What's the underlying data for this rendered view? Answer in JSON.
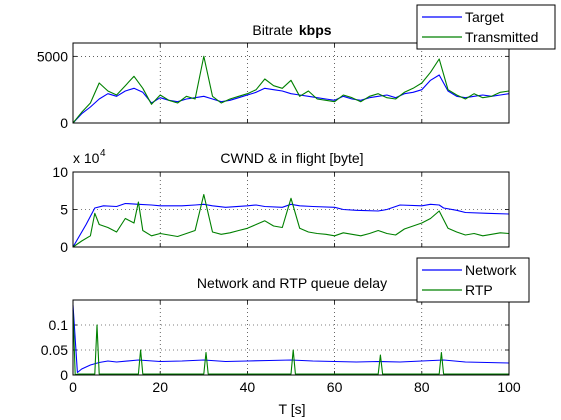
{
  "chart_data": [
    {
      "type": "line",
      "title": "Bitrate",
      "title_unit": "kbps",
      "xlim": [
        0,
        100
      ],
      "ylim": [
        0,
        6000
      ],
      "yticks": [
        "0",
        "5000"
      ],
      "xticks": [
        0,
        20,
        40,
        60,
        80,
        100
      ],
      "grid": true,
      "legend_placement": "top-right",
      "series": [
        {
          "name": "Target",
          "color": "#0000ff",
          "x": [
            0,
            2,
            4,
            6,
            8,
            10,
            12,
            14,
            16,
            18,
            20,
            22,
            24,
            26,
            28,
            30,
            32,
            34,
            36,
            38,
            40,
            42,
            44,
            46,
            48,
            50,
            52,
            54,
            56,
            58,
            60,
            62,
            64,
            66,
            68,
            70,
            72,
            74,
            76,
            78,
            80,
            82,
            84,
            86,
            88,
            90,
            92,
            94,
            96,
            98,
            100
          ],
          "values": [
            0,
            700,
            1200,
            1800,
            2200,
            2000,
            2400,
            2600,
            2300,
            1500,
            1900,
            1700,
            1600,
            1800,
            1900,
            2000,
            1800,
            1600,
            1700,
            1900,
            2100,
            2300,
            2600,
            2500,
            2400,
            2200,
            2100,
            2000,
            1900,
            1800,
            1700,
            2000,
            1800,
            1700,
            1900,
            2000,
            2100,
            1900,
            2200,
            2300,
            2500,
            3200,
            3600,
            2400,
            2000,
            1900,
            2000,
            2100,
            2000,
            2100,
            2200
          ]
        },
        {
          "name": "Transmitted",
          "color": "#008000",
          "x": [
            0,
            2,
            4,
            6,
            8,
            10,
            12,
            14,
            16,
            18,
            20,
            22,
            24,
            26,
            28,
            30,
            32,
            34,
            36,
            38,
            40,
            42,
            44,
            46,
            48,
            50,
            52,
            54,
            56,
            58,
            60,
            62,
            64,
            66,
            68,
            70,
            72,
            74,
            76,
            78,
            80,
            82,
            84,
            86,
            88,
            90,
            92,
            94,
            96,
            98,
            100
          ],
          "values": [
            0,
            800,
            1500,
            3000,
            2400,
            2100,
            2800,
            3500,
            2600,
            1400,
            2100,
            1700,
            1500,
            2000,
            1800,
            5000,
            2000,
            1500,
            1800,
            2000,
            2200,
            2500,
            3300,
            2800,
            2600,
            3200,
            2000,
            2400,
            1800,
            1700,
            1600,
            2100,
            1900,
            1600,
            2000,
            2200,
            1900,
            1800,
            2300,
            2600,
            3000,
            3800,
            4800,
            2500,
            2100,
            1800,
            2200,
            1900,
            2000,
            2300,
            2400
          ]
        }
      ]
    },
    {
      "type": "line",
      "title": "CWND & in flight [byte]",
      "xlim": [
        0,
        100
      ],
      "ylim": [
        0,
        100000
      ],
      "y_exponent_label": "x 10",
      "y_exponent": "4",
      "yticks": [
        "0",
        "5",
        "10"
      ],
      "xticks": [
        0,
        20,
        40,
        60,
        80,
        100
      ],
      "grid": true,
      "series": [
        {
          "color": "#0000ff",
          "x": [
            0,
            3,
            5,
            7,
            10,
            12,
            15,
            18,
            20,
            25,
            28,
            30,
            32,
            35,
            40,
            42,
            44,
            48,
            50,
            52,
            55,
            60,
            62,
            65,
            70,
            72,
            75,
            80,
            82,
            84,
            85,
            88,
            90,
            95,
            100
          ],
          "values": [
            0,
            30000,
            52000,
            55000,
            54000,
            58000,
            57000,
            56000,
            55000,
            55000,
            56000,
            57000,
            55000,
            53000,
            55000,
            56000,
            54000,
            53000,
            57000,
            55000,
            54000,
            53000,
            50000,
            49000,
            48000,
            50000,
            56000,
            55000,
            57000,
            56000,
            52000,
            49000,
            46000,
            45000,
            44000
          ]
        },
        {
          "color": "#008000",
          "x": [
            0,
            2,
            4,
            5,
            6,
            8,
            10,
            12,
            14,
            15,
            16,
            18,
            20,
            22,
            24,
            26,
            28,
            30,
            32,
            34,
            36,
            38,
            40,
            42,
            44,
            46,
            48,
            50,
            52,
            54,
            56,
            58,
            60,
            62,
            64,
            66,
            68,
            70,
            72,
            74,
            76,
            78,
            80,
            82,
            84,
            86,
            88,
            90,
            92,
            94,
            96,
            98,
            100
          ],
          "values": [
            0,
            8000,
            15000,
            45000,
            30000,
            26000,
            20000,
            38000,
            32000,
            60000,
            22000,
            15000,
            18000,
            16000,
            14000,
            18000,
            22000,
            70000,
            20000,
            17000,
            19000,
            22000,
            25000,
            30000,
            35000,
            28000,
            26000,
            65000,
            25000,
            20000,
            18000,
            17000,
            15000,
            19000,
            17000,
            15000,
            18000,
            22000,
            18000,
            16000,
            24000,
            28000,
            32000,
            38000,
            48000,
            25000,
            20000,
            16000,
            18000,
            15000,
            17000,
            19000,
            18000
          ]
        }
      ]
    },
    {
      "type": "line",
      "title": "Network and RTP queue delay",
      "xlabel": "T [s]",
      "xlim": [
        0,
        100
      ],
      "ylim": [
        0,
        0.15
      ],
      "yticks": [
        "0",
        "0.05",
        "0.1"
      ],
      "xticks": [
        0,
        20,
        40,
        60,
        80,
        100
      ],
      "xticklabels": [
        "0",
        "20",
        "40",
        "60",
        "80",
        "100"
      ],
      "grid": true,
      "legend_placement": "top-right",
      "series": [
        {
          "name": "Network",
          "color": "#0000ff",
          "x": [
            0,
            1,
            2,
            4,
            6,
            8,
            10,
            15,
            20,
            25,
            30,
            35,
            40,
            45,
            50,
            55,
            60,
            65,
            70,
            75,
            80,
            85,
            90,
            95,
            100
          ],
          "values": [
            0.14,
            0.005,
            0.012,
            0.02,
            0.025,
            0.028,
            0.026,
            0.03,
            0.027,
            0.028,
            0.03,
            0.027,
            0.028,
            0.029,
            0.03,
            0.028,
            0.027,
            0.026,
            0.027,
            0.026,
            0.028,
            0.03,
            0.026,
            0.025,
            0.024
          ]
        },
        {
          "name": "RTP",
          "color": "#008000",
          "x": [
            0,
            0.5,
            1,
            5,
            5.5,
            6,
            15,
            15.5,
            16,
            30,
            30.5,
            31,
            50,
            50.5,
            51,
            70,
            70.5,
            71,
            84,
            84.5,
            85,
            100
          ],
          "values": [
            0.13,
            0.0,
            0.002,
            0.002,
            0.1,
            0.002,
            0.002,
            0.05,
            0.002,
            0.002,
            0.045,
            0.002,
            0.002,
            0.05,
            0.002,
            0.002,
            0.04,
            0.002,
            0.002,
            0.045,
            0.002,
            0.002
          ]
        }
      ]
    }
  ]
}
